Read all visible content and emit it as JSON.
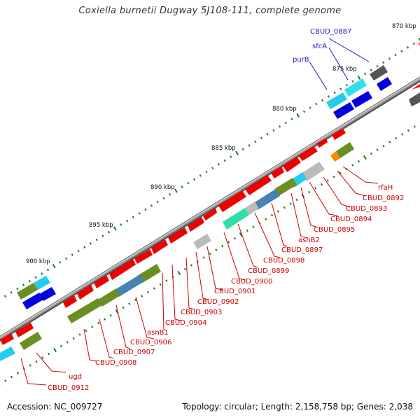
{
  "title": "Coxiella burnetii Dugway 5J108-111, complete genome",
  "accession": "Accession: NC_009727",
  "summary": "Topology: circular; Length: 2,158,758 bp; Genes: 2,038",
  "scale_labels": [
    "870 kbp",
    "875 kbp",
    "880 kbp",
    "885 kbp",
    "890 kbp",
    "895 kbp",
    "900 kbp"
  ],
  "gene_labels_forward": [
    "CBUD_0887",
    "sfcA",
    "purB"
  ],
  "gene_labels_reverse": [
    "rfaH",
    "CBUD_0892",
    "CBUD_0893",
    "CBUD_0894",
    "CBUD_0895",
    "asnB2",
    "CBUD_0897",
    "CBUD_0898",
    "CBUD_0899",
    "CBUD_0900",
    "CBUD_0901",
    "CBUD_0902",
    "CBUD_0903",
    "CBUD_0904",
    "asnB1",
    "CBUD_0906",
    "CBUD_0907",
    "CBUD_0908",
    "ugd",
    "CBUD_0912"
  ],
  "colors": {
    "forward_label": "#1a1acc",
    "reverse_label": "#cc0000",
    "backbone": "#8a8a8a",
    "tick": "#1f7a1f",
    "cds_red": "#ee0000",
    "cds_blue": "#0000dd",
    "cds_olive": "#6b8e23",
    "cds_cyan": "#22ccee",
    "cds_steel": "#4682b4",
    "cds_grey": "#bbbbbb",
    "cds_dark": "#555555",
    "cds_mint": "#33ddaa",
    "cds_orange": "#ff8800"
  }
}
